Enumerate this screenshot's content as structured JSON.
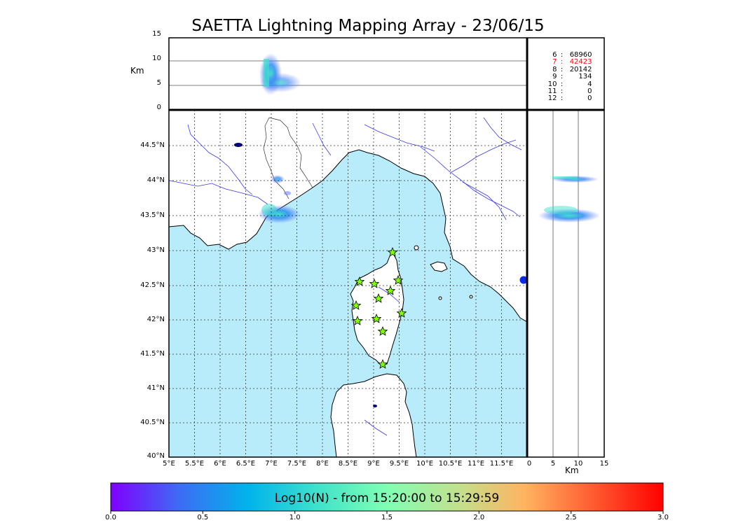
{
  "title": "SAETTA Lightning Mapping Array - 23/06/15",
  "top_panel": {
    "ylabel": "Km",
    "yticks": [
      "0",
      "5",
      "10",
      "15"
    ]
  },
  "right_panel": {
    "xlabel": "Km",
    "xticks": [
      "0",
      "5",
      "10",
      "15"
    ]
  },
  "stats": [
    {
      "level": "6",
      "count": "68960",
      "highlight": false
    },
    {
      "level": "7",
      "count": "42423",
      "highlight": true
    },
    {
      "level": "8",
      "count": "20142",
      "highlight": false
    },
    {
      "level": "9",
      "count": "134",
      "highlight": false
    },
    {
      "level": "10",
      "count": "4",
      "highlight": false
    },
    {
      "level": "11",
      "count": "0",
      "highlight": false
    },
    {
      "level": "12",
      "count": "0",
      "highlight": false
    }
  ],
  "map": {
    "lat_ticks": [
      "40°N",
      "40.5°N",
      "41°N",
      "41.5°N",
      "42°N",
      "42.5°N",
      "43°N",
      "43.5°N",
      "44°N",
      "44.5°N"
    ],
    "lon_ticks": [
      "5°E",
      "5.5°E",
      "6°E",
      "6.5°E",
      "7°E",
      "7.5°E",
      "8°E",
      "8.5°E",
      "9°E",
      "9.5°E",
      "10°E",
      "10.5°E",
      "11°E",
      "11.5°E"
    ],
    "sea_color": "#b9ecfb",
    "river_color": "#3a3ae6",
    "station_marker_color": "#7fff00"
  },
  "colorbar": {
    "label": "Log10(N) - from 15:20:00 to 15:29:59",
    "ticks": [
      "0.0",
      "0.5",
      "1.0",
      "1.5",
      "2.0",
      "2.5",
      "3.0"
    ],
    "colormap": [
      "#7f00ff",
      "#3d6cf5",
      "#00b4eb",
      "#40e2cb",
      "#80ffb4",
      "#c0e28f",
      "#ffb360",
      "#ff5a30",
      "#ff0000"
    ]
  }
}
